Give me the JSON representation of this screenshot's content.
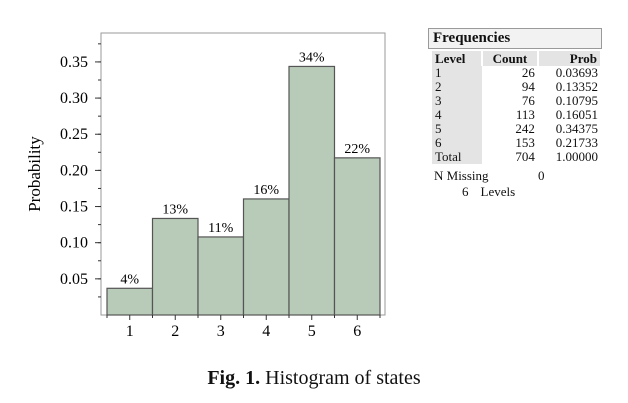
{
  "chart_data": {
    "type": "bar",
    "categories": [
      "1",
      "2",
      "3",
      "4",
      "5",
      "6"
    ],
    "values": [
      0.03693,
      0.13352,
      0.10795,
      0.16051,
      0.34375,
      0.21733
    ],
    "bar_labels": [
      "4%",
      "13%",
      "11%",
      "16%",
      "34%",
      "22%"
    ],
    "ylabel": "Probability",
    "xlabel": "",
    "ylim": [
      0,
      0.39
    ],
    "yticks": [
      0.05,
      0.1,
      0.15,
      0.2,
      0.25,
      0.3,
      0.35
    ],
    "ytick_labels": [
      "0.05",
      "0.10",
      "0.15",
      "0.20",
      "0.25",
      "0.30",
      "0.35"
    ],
    "bar_color": "#b8cab8",
    "bar_edge_color": "#555555",
    "grid": false
  },
  "frequencies": {
    "title": "Frequencies",
    "headers": [
      "Level",
      "Count",
      "Prob"
    ],
    "rows": [
      [
        "1",
        "26",
        "0.03693"
      ],
      [
        "2",
        "94",
        "0.13352"
      ],
      [
        "3",
        "76",
        "0.10795"
      ],
      [
        "4",
        "113",
        "0.16051"
      ],
      [
        "5",
        "242",
        "0.34375"
      ],
      [
        "6",
        "153",
        "0.21733"
      ],
      [
        "Total",
        "704",
        "1.00000"
      ]
    ],
    "n_missing_label": "N Missing",
    "n_missing_value": "0",
    "levels_count": "6",
    "levels_label": "Levels"
  },
  "caption": {
    "prefix": "Fig. 1.",
    "text": " Histogram of states"
  }
}
